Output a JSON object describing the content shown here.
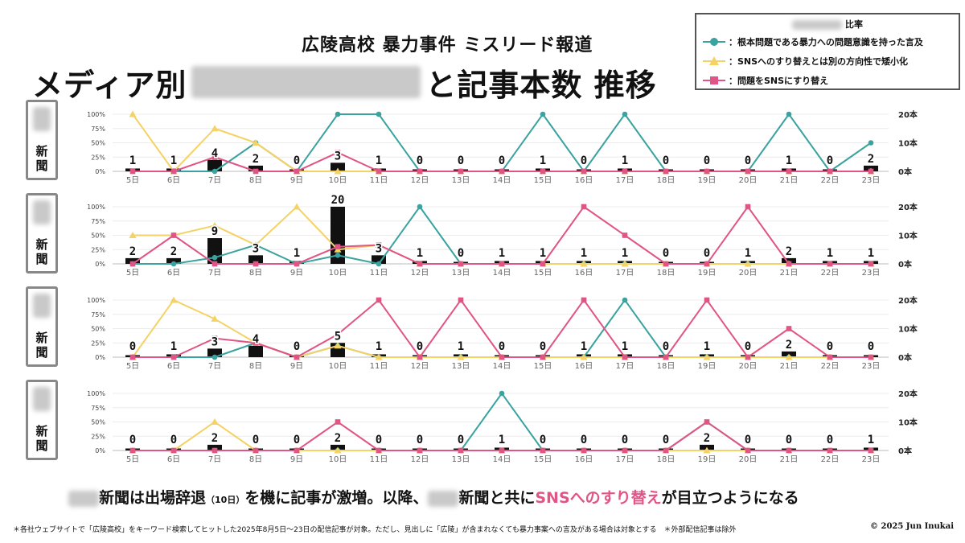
{
  "header": {
    "subtitle": "広陵高校 暴力事件 ミスリード報道",
    "title_prefix": "メディア別",
    "title_suffix": "と記事本数 推移"
  },
  "legend": {
    "header_suffix": "比率",
    "items": [
      {
        "marker": "circle",
        "color": "#3aa39f",
        "text": "：根本問題である暴力への問題意識を持った言及"
      },
      {
        "marker": "triangle",
        "color": "#f5d266",
        "text": "：SNSへのすり替えとは別の方向性で矮小化"
      },
      {
        "marker": "square",
        "color": "#e05585",
        "text": "：問題をSNSにすり替え"
      }
    ]
  },
  "panel_label_suffix": "新\n聞",
  "footnote": {
    "part1": "新聞は出場辞退",
    "paren": "（10日）",
    "part2": "を機に記事が激増。以降、",
    "part3": "新聞と共に",
    "highlight": "SNSへのすり替え",
    "part4": "が目立つようになる"
  },
  "disclaimer": "＊各社ウェブサイトで「広陵高校」をキーワード検索してヒットした2025年8月5日〜23日の配信記事が対象。ただし、見出しに「広陵」が含まれなくても暴力事案への言及がある場合は対象とする　＊外部配信記事は除外",
  "copyright": "© 2025 Jun Inukai",
  "chart_data": [
    {
      "type": "bar+line",
      "x": [
        "5日",
        "6日",
        "7日",
        "8日",
        "9日",
        "10日",
        "11日",
        "12日",
        "13日",
        "14日",
        "15日",
        "16日",
        "17日",
        "18日",
        "19日",
        "20日",
        "21日",
        "22日",
        "23日"
      ],
      "left_axis": {
        "ticks": [
          "0%",
          "25%",
          "50%",
          "75%",
          "100%"
        ],
        "ylim": [
          0,
          100
        ]
      },
      "right_axis": {
        "ticks": [
          "0本",
          "10本",
          "20本"
        ],
        "ylim": [
          0,
          20
        ]
      },
      "bars": [
        1,
        1,
        4,
        2,
        0,
        3,
        1,
        0,
        0,
        0,
        1,
        0,
        1,
        0,
        0,
        0,
        1,
        0,
        2
      ],
      "series": [
        {
          "marker": "circle",
          "color": "#3aa39f",
          "values": [
            0,
            0,
            0,
            50,
            0,
            100,
            100,
            0,
            0,
            0,
            100,
            0,
            100,
            0,
            0,
            0,
            100,
            0,
            50
          ]
        },
        {
          "marker": "triangle",
          "color": "#f5d266",
          "values": [
            100,
            0,
            75,
            50,
            0,
            0,
            0,
            0,
            0,
            0,
            0,
            0,
            0,
            0,
            0,
            0,
            0,
            0,
            0
          ]
        },
        {
          "marker": "square",
          "color": "#e05585",
          "values": [
            0,
            0,
            25,
            0,
            0,
            33,
            0,
            0,
            0,
            0,
            0,
            0,
            0,
            0,
            0,
            0,
            0,
            0,
            0
          ]
        }
      ]
    },
    {
      "type": "bar+line",
      "x": [
        "5日",
        "6日",
        "7日",
        "8日",
        "9日",
        "10日",
        "11日",
        "12日",
        "13日",
        "14日",
        "15日",
        "16日",
        "17日",
        "18日",
        "19日",
        "20日",
        "21日",
        "22日",
        "23日"
      ],
      "left_axis": {
        "ticks": [
          "0%",
          "25%",
          "50%",
          "75%",
          "100%"
        ],
        "ylim": [
          0,
          100
        ]
      },
      "right_axis": {
        "ticks": [
          "0本",
          "10本",
          "20本"
        ],
        "ylim": [
          0,
          20
        ]
      },
      "bars": [
        2,
        2,
        9,
        3,
        1,
        20,
        3,
        1,
        0,
        1,
        1,
        1,
        1,
        0,
        0,
        1,
        2,
        1,
        1
      ],
      "series": [
        {
          "marker": "circle",
          "color": "#3aa39f",
          "values": [
            0,
            0,
            11,
            33,
            0,
            15,
            0,
            100,
            0,
            0,
            0,
            0,
            0,
            0,
            0,
            0,
            0,
            0,
            0
          ]
        },
        {
          "marker": "triangle",
          "color": "#f5d266",
          "values": [
            50,
            50,
            67,
            33,
            100,
            25,
            33,
            0,
            0,
            0,
            0,
            0,
            0,
            0,
            0,
            0,
            0,
            0,
            0
          ]
        },
        {
          "marker": "square",
          "color": "#e05585",
          "values": [
            0,
            50,
            0,
            0,
            0,
            30,
            33,
            0,
            0,
            0,
            0,
            100,
            50,
            0,
            0,
            100,
            0,
            0,
            0
          ]
        }
      ]
    },
    {
      "type": "bar+line",
      "x": [
        "5日",
        "6日",
        "7日",
        "8日",
        "9日",
        "10日",
        "11日",
        "12日",
        "13日",
        "14日",
        "15日",
        "16日",
        "17日",
        "18日",
        "19日",
        "20日",
        "21日",
        "22日",
        "23日"
      ],
      "left_axis": {
        "ticks": [
          "0%",
          "25%",
          "50%",
          "75%",
          "100%"
        ],
        "ylim": [
          0,
          100
        ]
      },
      "right_axis": {
        "ticks": [
          "0本",
          "10本",
          "20本"
        ],
        "ylim": [
          0,
          20
        ]
      },
      "bars": [
        0,
        1,
        3,
        4,
        0,
        5,
        1,
        0,
        1,
        0,
        0,
        1,
        1,
        0,
        1,
        0,
        2,
        0,
        0
      ],
      "series": [
        {
          "marker": "circle",
          "color": "#3aa39f",
          "values": [
            0,
            0,
            0,
            25,
            0,
            20,
            0,
            0,
            0,
            0,
            0,
            0,
            100,
            0,
            0,
            0,
            0,
            0,
            0
          ]
        },
        {
          "marker": "triangle",
          "color": "#f5d266",
          "values": [
            0,
            100,
            67,
            25,
            0,
            20,
            0,
            0,
            0,
            0,
            0,
            0,
            0,
            0,
            0,
            0,
            0,
            0,
            0
          ]
        },
        {
          "marker": "square",
          "color": "#e05585",
          "values": [
            0,
            0,
            33,
            25,
            0,
            40,
            100,
            0,
            100,
            0,
            0,
            100,
            0,
            0,
            100,
            0,
            50,
            0,
            0
          ]
        }
      ]
    },
    {
      "type": "bar+line",
      "x": [
        "5日",
        "6日",
        "7日",
        "8日",
        "9日",
        "10日",
        "11日",
        "12日",
        "13日",
        "14日",
        "15日",
        "16日",
        "17日",
        "18日",
        "19日",
        "20日",
        "21日",
        "22日",
        "23日"
      ],
      "left_axis": {
        "ticks": [
          "0%",
          "25%",
          "50%",
          "75%",
          "100%"
        ],
        "ylim": [
          0,
          100
        ]
      },
      "right_axis": {
        "ticks": [
          "0本",
          "10本",
          "20本"
        ],
        "ylim": [
          0,
          20
        ]
      },
      "bars": [
        0,
        0,
        2,
        0,
        0,
        2,
        0,
        0,
        0,
        1,
        0,
        0,
        0,
        0,
        2,
        0,
        0,
        0,
        1
      ],
      "series": [
        {
          "marker": "circle",
          "color": "#3aa39f",
          "values": [
            0,
            0,
            0,
            0,
            0,
            0,
            0,
            0,
            0,
            100,
            0,
            0,
            0,
            0,
            50,
            0,
            0,
            0,
            0
          ]
        },
        {
          "marker": "triangle",
          "color": "#f5d266",
          "values": [
            0,
            0,
            50,
            0,
            0,
            0,
            0,
            0,
            0,
            0,
            0,
            0,
            0,
            0,
            0,
            0,
            0,
            0,
            0
          ]
        },
        {
          "marker": "square",
          "color": "#e05585",
          "values": [
            0,
            0,
            0,
            0,
            0,
            50,
            0,
            0,
            0,
            0,
            0,
            0,
            0,
            0,
            50,
            0,
            0,
            0,
            0
          ]
        }
      ]
    }
  ]
}
